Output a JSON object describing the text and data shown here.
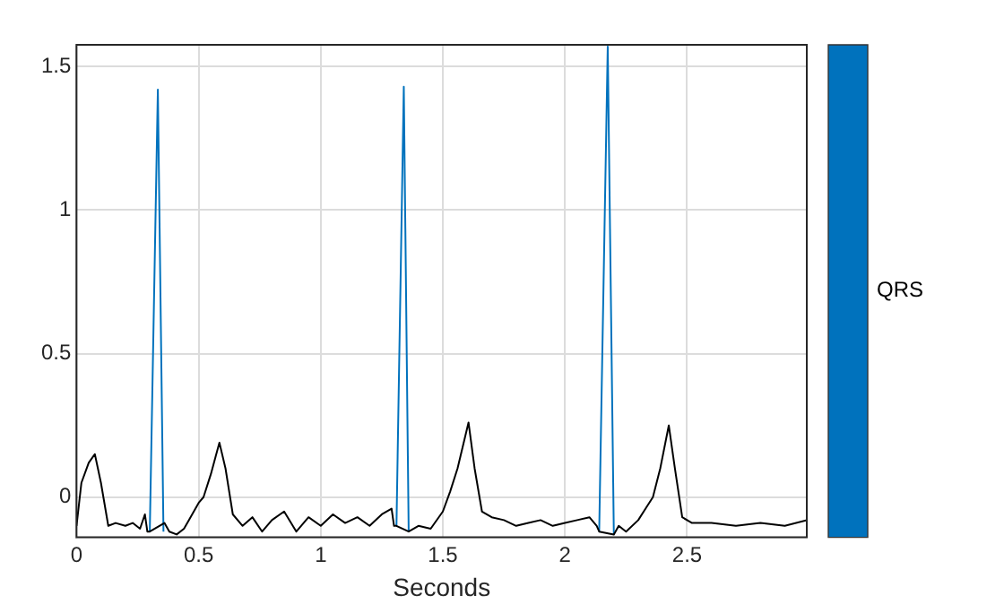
{
  "chart_data": {
    "type": "line",
    "xlabel": "Seconds",
    "xlim": [
      0,
      2.99
    ],
    "ylim": [
      -0.14,
      1.576
    ],
    "xticks": [
      0,
      0.5,
      1,
      1.5,
      2,
      2.5
    ],
    "yticks": [
      0,
      0.5,
      1,
      1.5
    ],
    "grid": true,
    "legend": "right",
    "marker": "none",
    "line_style": "solid",
    "series": [
      {
        "color": "#000000",
        "x": [
          0,
          0.02,
          0.05,
          0.075,
          0.1,
          0.13,
          0.16,
          0.2,
          0.23,
          0.26,
          0.28,
          0.29,
          0.3,
          0.36,
          0.38,
          0.41,
          0.44,
          0.46,
          0.5,
          0.52,
          0.55,
          0.585,
          0.61,
          0.64,
          0.68,
          0.72,
          0.76,
          0.8,
          0.85,
          0.9,
          0.95,
          1.0,
          1.05,
          1.1,
          1.15,
          1.2,
          1.25,
          1.29,
          1.3,
          1.31,
          1.36,
          1.4,
          1.45,
          1.5,
          1.53,
          1.56,
          1.605,
          1.63,
          1.66,
          1.7,
          1.75,
          1.8,
          1.85,
          1.9,
          1.95,
          2.0,
          2.05,
          2.1,
          2.13,
          2.14,
          2.2,
          2.22,
          2.25,
          2.3,
          2.33,
          2.36,
          2.39,
          2.425,
          2.45,
          2.48,
          2.52,
          2.6,
          2.7,
          2.8,
          2.9,
          2.99
        ],
        "values": [
          -0.1,
          0.05,
          0.12,
          0.15,
          0.05,
          -0.1,
          -0.09,
          -0.1,
          -0.09,
          -0.11,
          -0.06,
          -0.12,
          -0.12,
          -0.09,
          -0.12,
          -0.13,
          -0.11,
          -0.08,
          -0.02,
          0.0,
          0.08,
          0.19,
          0.1,
          -0.06,
          -0.1,
          -0.07,
          -0.12,
          -0.08,
          -0.05,
          -0.12,
          -0.07,
          -0.1,
          -0.06,
          -0.09,
          -0.07,
          -0.1,
          -0.06,
          -0.04,
          -0.1,
          -0.1,
          -0.12,
          -0.1,
          -0.11,
          -0.05,
          0.02,
          0.1,
          0.26,
          0.1,
          -0.05,
          -0.07,
          -0.08,
          -0.1,
          -0.09,
          -0.08,
          -0.1,
          -0.09,
          -0.08,
          -0.07,
          -0.1,
          -0.12,
          -0.13,
          -0.1,
          -0.12,
          -0.08,
          -0.04,
          0.0,
          0.1,
          0.25,
          0.1,
          -0.07,
          -0.09,
          -0.09,
          -0.1,
          -0.09,
          -0.1,
          -0.08
        ]
      },
      {
        "name": "QRS",
        "color": "#0072bd",
        "x": [
          0.3,
          0.333,
          0.356,
          null,
          1.31,
          1.34,
          1.36,
          null,
          2.14,
          2.175,
          2.2
        ],
        "values": [
          -0.12,
          1.42,
          -0.12,
          null,
          -0.1,
          1.43,
          -0.12,
          null,
          -0.12,
          1.57,
          -0.13
        ]
      }
    ]
  }
}
